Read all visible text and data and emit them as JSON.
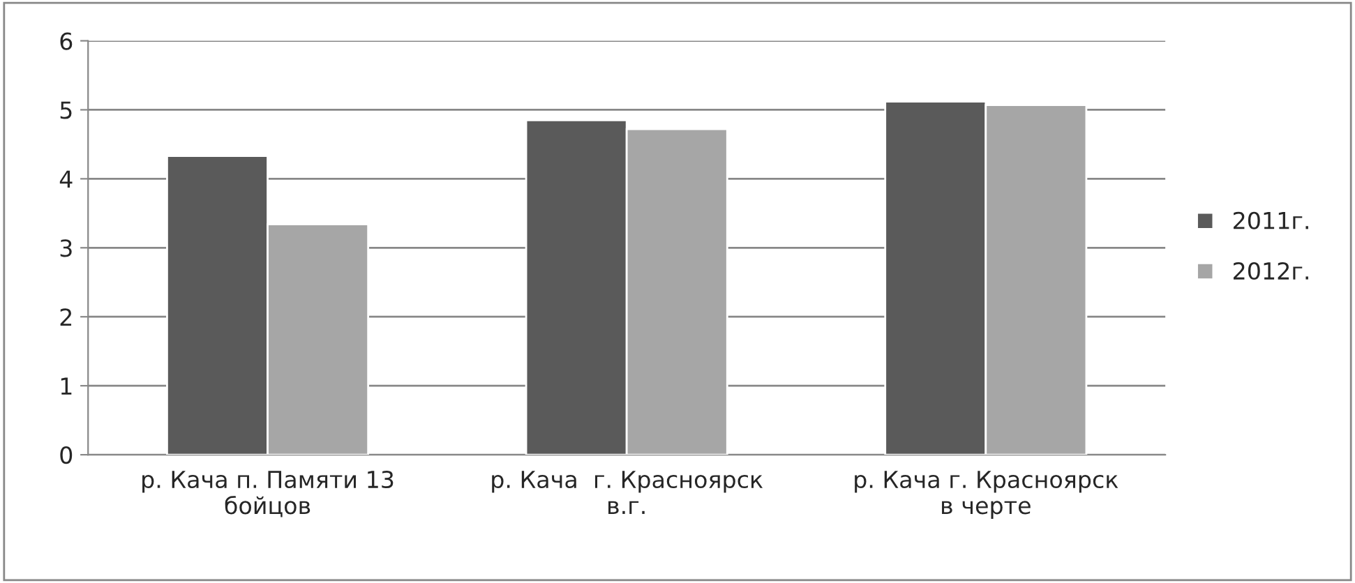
{
  "chart_data": {
    "type": "bar",
    "categories": [
      "р. Кача п. Памяти 13\nбойцов",
      "р. Кача  г. Красноярск\nв.г.",
      "р. Кача г. Красноярск\nв черте"
    ],
    "series": [
      {
        "name": "2011г.",
        "color": "#5a5a5a",
        "values": [
          4.33,
          4.85,
          5.12
        ]
      },
      {
        "name": "2012г.",
        "color": "#a6a6a6",
        "values": [
          3.34,
          4.72,
          5.07
        ]
      }
    ],
    "ylim": [
      0,
      6
    ],
    "yticks": [
      0,
      1,
      2,
      3,
      4,
      5,
      6
    ],
    "grid": "y",
    "legend": "right"
  }
}
